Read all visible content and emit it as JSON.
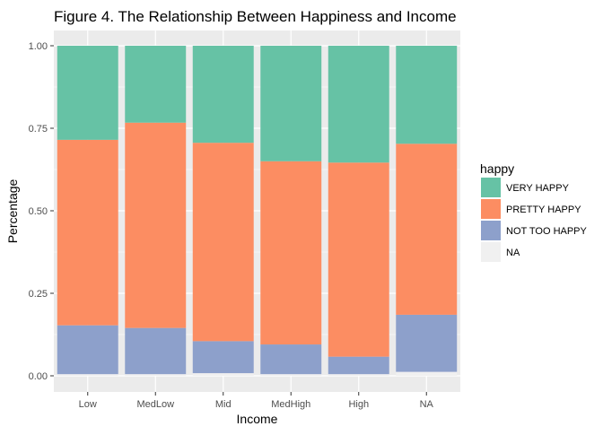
{
  "chart_data": {
    "type": "bar",
    "stacked": true,
    "title": "Figure 4. The Relationship Between Happiness and Income",
    "xlabel": "Income",
    "ylabel": "Percentage",
    "categories": [
      "Low",
      "MedLow",
      "Mid",
      "MedHigh",
      "High",
      "NA"
    ],
    "ylim": [
      0,
      1
    ],
    "yticks": [
      0,
      0.25,
      0.5,
      0.75,
      1
    ],
    "ytick_labels": [
      "0.00",
      "0.25",
      "0.50",
      "0.75",
      "1.00"
    ],
    "grid": true,
    "legend_position": "right",
    "legend_title": "happy",
    "series": [
      {
        "name": "NA",
        "color": "#f0f0f0",
        "values": [
          0.005,
          0.005,
          0.008,
          0.005,
          0.005,
          0.012
        ]
      },
      {
        "name": "NOT TOO HAPPY",
        "color": "#8da0cb",
        "values": [
          0.148,
          0.14,
          0.097,
          0.09,
          0.053,
          0.173
        ]
      },
      {
        "name": "PRETTY HAPPY",
        "color": "#fc8d62",
        "values": [
          0.562,
          0.622,
          0.601,
          0.555,
          0.588,
          0.518
        ]
      },
      {
        "name": "VERY HAPPY",
        "color": "#66c2a5",
        "values": [
          0.285,
          0.233,
          0.294,
          0.35,
          0.354,
          0.297
        ]
      }
    ],
    "legend_order": [
      "VERY HAPPY",
      "PRETTY HAPPY",
      "NOT TOO HAPPY",
      "NA"
    ]
  }
}
